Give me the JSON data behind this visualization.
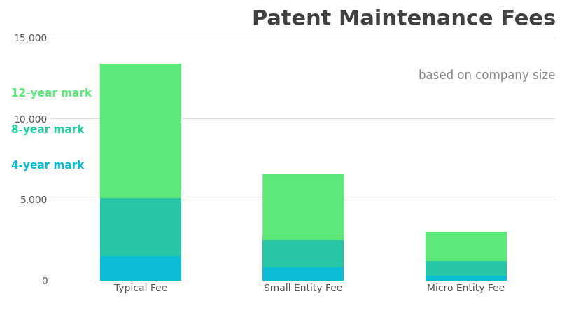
{
  "title": "Patent Maintenance Fees",
  "subtitle": "based on company size",
  "categories": [
    "Typical Fee",
    "Small Entity Fee",
    "Micro Entity Fee"
  ],
  "segments": {
    "4-year mark": [
      1500,
      800,
      300
    ],
    "8-year mark": [
      3600,
      1700,
      900
    ],
    "12-year mark": [
      8300,
      4100,
      1800
    ]
  },
  "colors": {
    "4-year mark": "#0BBCD4",
    "8-year mark": "#26C6A6",
    "12-year mark": "#5EE87A"
  },
  "ylim": [
    0,
    15000
  ],
  "yticks": [
    0,
    5000,
    10000,
    15000
  ],
  "ytick_labels": [
    "0",
    "5,000",
    "10,000",
    "15,000"
  ],
  "title_color": "#404040",
  "subtitle_color": "#888888",
  "tick_label_color": "#555555",
  "bar_width": 0.5,
  "background_color": "#ffffff",
  "grid_color": "#e0e0e0",
  "legend_label_color_12": "#5EE87A",
  "legend_label_color_8": "#1ECFA0",
  "legend_label_color_4": "#00BCD4"
}
